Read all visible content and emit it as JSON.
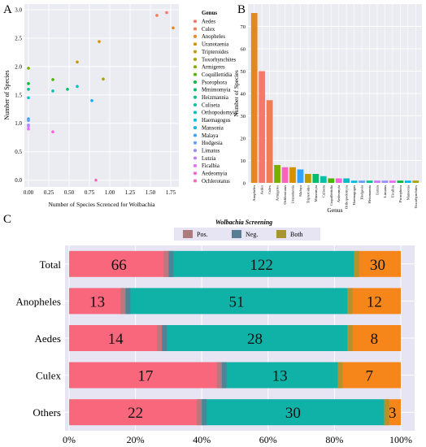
{
  "panels": {
    "a": "A",
    "b": "B",
    "c": "C"
  },
  "chart_data": [
    {
      "panel": "A",
      "type": "scatter",
      "title": "",
      "xlabel": "Number of Species Screnced for Wolbachia",
      "ylabel": "Number of Species",
      "x_ticks": [
        "0.00",
        "0.25",
        "0.50",
        "0.75",
        "1.00",
        "1.25",
        "1.50",
        "1.75"
      ],
      "y_ticks": [
        "0.0",
        "0.5",
        "1.0",
        "1.5",
        "2.0",
        "2.5",
        "3.0"
      ],
      "xlim": [
        -0.05,
        1.85
      ],
      "ylim": [
        -0.12,
        3.1
      ],
      "grid": true,
      "legend_title": "Genus",
      "legend_position": "right",
      "series": [
        {
          "name": "Aedes",
          "color": "#f8766d",
          "x": 1.7,
          "y": 2.95
        },
        {
          "name": "Culex",
          "color": "#f07d52",
          "x": 1.58,
          "y": 2.9
        },
        {
          "name": "Anopheles",
          "color": "#e7861b",
          "x": 1.78,
          "y": 2.68
        },
        {
          "name": "Uranotaenia",
          "color": "#d89000",
          "x": 0.87,
          "y": 2.44
        },
        {
          "name": "Tripteroides",
          "color": "#c09b00",
          "x": 0.6,
          "y": 2.08
        },
        {
          "name": "Toxorhynchites",
          "color": "#a8a400",
          "x": 0.92,
          "y": 1.78
        },
        {
          "name": "Armigeres",
          "color": "#7cae00",
          "x": 0.0,
          "y": 1.97
        },
        {
          "name": "Coquillettidia",
          "color": "#4cb400",
          "x": 0.3,
          "y": 1.77
        },
        {
          "name": "Psorophora",
          "color": "#00ba38",
          "x": 0.0,
          "y": 1.7
        },
        {
          "name": "Mmimomyia",
          "color": "#00be6c",
          "x": 0.48,
          "y": 1.6
        },
        {
          "name": "Heizmannia",
          "color": "#00c08b",
          "x": 0.0,
          "y": 1.6
        },
        {
          "name": "Culiseta",
          "color": "#00c1a7",
          "x": 0.3,
          "y": 1.57
        },
        {
          "name": "Orthopodomyia",
          "color": "#00bfc4",
          "x": 0.6,
          "y": 1.65
        },
        {
          "name": "Haemagogus",
          "color": "#00bbdc",
          "x": 0.0,
          "y": 1.45
        },
        {
          "name": "Mansonia",
          "color": "#00b4ef",
          "x": 0.78,
          "y": 1.4
        },
        {
          "name": "Malaya",
          "color": "#35a2ff",
          "x": 0.0,
          "y": 1.08
        },
        {
          "name": "Hodgesia",
          "color": "#619cff",
          "x": 0.0,
          "y": 1.05
        },
        {
          "name": "Limatus",
          "color": "#9590ff",
          "x": 0.0,
          "y": 0.97
        },
        {
          "name": "Lutzia",
          "color": "#c77cff",
          "x": 0.0,
          "y": 0.95
        },
        {
          "name": "Ficalbia",
          "color": "#e76bf3",
          "x": 0.0,
          "y": 0.9
        },
        {
          "name": "Aedeomyia",
          "color": "#fa62db",
          "x": 0.3,
          "y": 0.85
        },
        {
          "name": "Ochlerotatus",
          "color": "#ff62bc",
          "x": 0.83,
          "y": 0.0
        }
      ]
    },
    {
      "panel": "B",
      "type": "bar",
      "title": "",
      "xlabel": "Genus",
      "ylabel": "Number of Species",
      "y_ticks": [
        "0",
        "10",
        "20",
        "30",
        "40",
        "50",
        "60",
        "70"
      ],
      "ylim": [
        0,
        80
      ],
      "grid": true,
      "categories": [
        "Anopheles",
        "Aedes",
        "Culex",
        "Armigeres",
        "Ochlerotatus",
        "Uranotaenia",
        "Malaya",
        "Tripteroides",
        "Mimomyia",
        "Culiseta",
        "Coquillettidia",
        "Aedeomyia",
        "Orthopodomyia",
        "Haemagogus",
        "Hodgesia",
        "Heizmannia",
        "Lutzia",
        "Limatus",
        "Ficalbia",
        "Psorophora",
        "Mansonia",
        "Toxorhynchites"
      ],
      "values": [
        76,
        50,
        37,
        8,
        7,
        7,
        6,
        4,
        4,
        3,
        2,
        2,
        2,
        1,
        1,
        1,
        1,
        1,
        1,
        1,
        1,
        1
      ],
      "colors": [
        "#e7861b",
        "#f8766d",
        "#f07d52",
        "#7cae00",
        "#ff62bc",
        "#d89000",
        "#35a2ff",
        "#c09b00",
        "#00be6c",
        "#00c1a7",
        "#4cb400",
        "#fa62db",
        "#00bfc4",
        "#00bbdc",
        "#619cff",
        "#00c08b",
        "#c77cff",
        "#9590ff",
        "#e76bf3",
        "#00ba38",
        "#00b4ef",
        "#a8a400"
      ]
    },
    {
      "panel": "C",
      "type": "bar",
      "orientation": "horizontal",
      "stacked": "percent",
      "title": "",
      "legend_title": "Wolbachia Screening",
      "legend_position": "top",
      "x_ticks": [
        "0%",
        "20%",
        "40%",
        "60%",
        "80%",
        "100%"
      ],
      "xlim": [
        0,
        100
      ],
      "grid": true,
      "categories": [
        "Total",
        "Anopheles",
        "Aedes",
        "Culex",
        "Others"
      ],
      "series": [
        {
          "name": "Pos.",
          "colors": [
            "#f8677b",
            "#ad7b7e"
          ],
          "values": [
            66,
            13,
            14,
            17,
            22
          ]
        },
        {
          "name": "Neg.",
          "colors": [
            "#10b1a6",
            "#587d94"
          ],
          "values": [
            122,
            51,
            28,
            13,
            30
          ]
        },
        {
          "name": "Both",
          "colors": [
            "#f7861a",
            "#a89530"
          ],
          "values": [
            30,
            12,
            8,
            7,
            3
          ]
        }
      ],
      "bar_totals_pct": [
        {
          "pos": [
            0,
            30
          ],
          "neg": [
            30,
            86
          ],
          "both": [
            86,
            100
          ]
        },
        {
          "pos": [
            0,
            17
          ],
          "neg": [
            17,
            84
          ],
          "both": [
            84,
            100
          ]
        },
        {
          "pos": [
            0,
            28
          ],
          "neg": [
            28,
            84
          ],
          "both": [
            84,
            100
          ]
        },
        {
          "pos": [
            0,
            46
          ],
          "neg": [
            46,
            81
          ],
          "both": [
            81,
            100
          ]
        },
        {
          "pos": [
            0,
            40
          ],
          "neg": [
            40,
            95
          ],
          "both": [
            95,
            100
          ]
        }
      ]
    }
  ]
}
